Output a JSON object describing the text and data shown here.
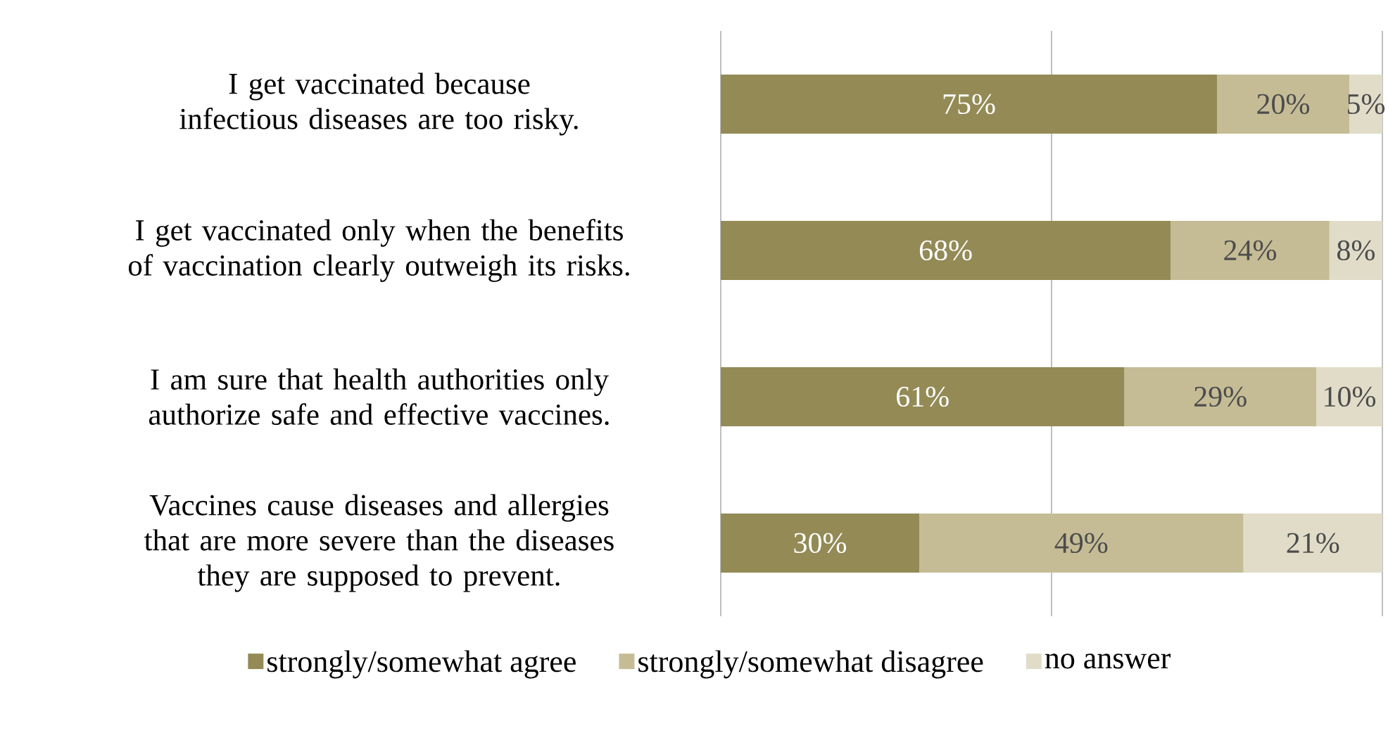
{
  "chart_data": {
    "type": "bar",
    "orientation": "horizontal",
    "stacked": true,
    "categories": [
      "I get vaccinated because infectious diseases are too risky.",
      "I get vaccinated only when the benefits of vaccination clearly outweigh its risks.",
      "I am sure that health authorities only authorize safe and effective vaccines.",
      "Vaccines cause diseases and allergies that are more severe than the diseases they are supposed to prevent."
    ],
    "series": [
      {
        "name": "strongly/somewhat agree",
        "color": "#938a56",
        "values": [
          75,
          68,
          61,
          30
        ],
        "value_labels": [
          "75%",
          "68%",
          "61%",
          "30%"
        ]
      },
      {
        "name": "strongly/somewhat disagree",
        "color": "#c5bc96",
        "values": [
          20,
          24,
          29,
          49
        ],
        "value_labels": [
          "20%",
          "24%",
          "29%",
          "49%"
        ]
      },
      {
        "name": "no answer",
        "color": "#e0dcc8",
        "values": [
          5,
          8,
          10,
          21
        ],
        "value_labels": [
          "5%",
          "8%",
          "10%",
          "21%"
        ]
      }
    ],
    "xlim": [
      0,
      100
    ],
    "xticks": [
      {
        "value": 0,
        "label": null
      },
      {
        "value": 50,
        "label": null
      },
      {
        "value": 100,
        "label": null
      }
    ],
    "grid": "x",
    "tick_labels": "y",
    "legend": "bottom"
  }
}
